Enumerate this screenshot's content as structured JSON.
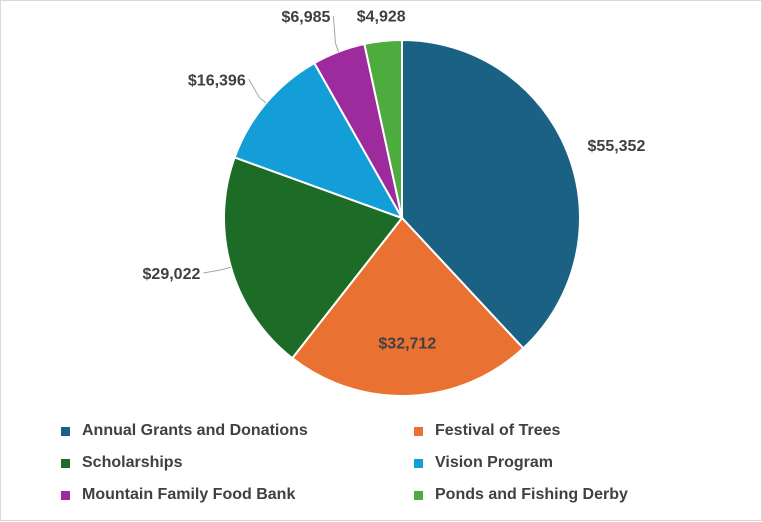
{
  "chart_data": {
    "type": "pie",
    "title": "",
    "categories": [
      "Annual Grants and Donations",
      "Festival of Trees",
      "Scholarships",
      "Vision Program",
      "Mountain Family Food Bank",
      "Ponds and Fishing Derby"
    ],
    "values": [
      55352,
      32712,
      29022,
      16396,
      6985,
      4928
    ],
    "data_labels": [
      "$55,352",
      "$32,712",
      "$29,022",
      "$16,396",
      "$6,985",
      "$4,928"
    ],
    "colors": [
      "#1b6183",
      "#e97232",
      "#1c6b26",
      "#149ed8",
      "#9e2b9e",
      "#4eab3d"
    ],
    "legend_position": "bottom",
    "start_angle": "12 o'clock, clockwise"
  }
}
